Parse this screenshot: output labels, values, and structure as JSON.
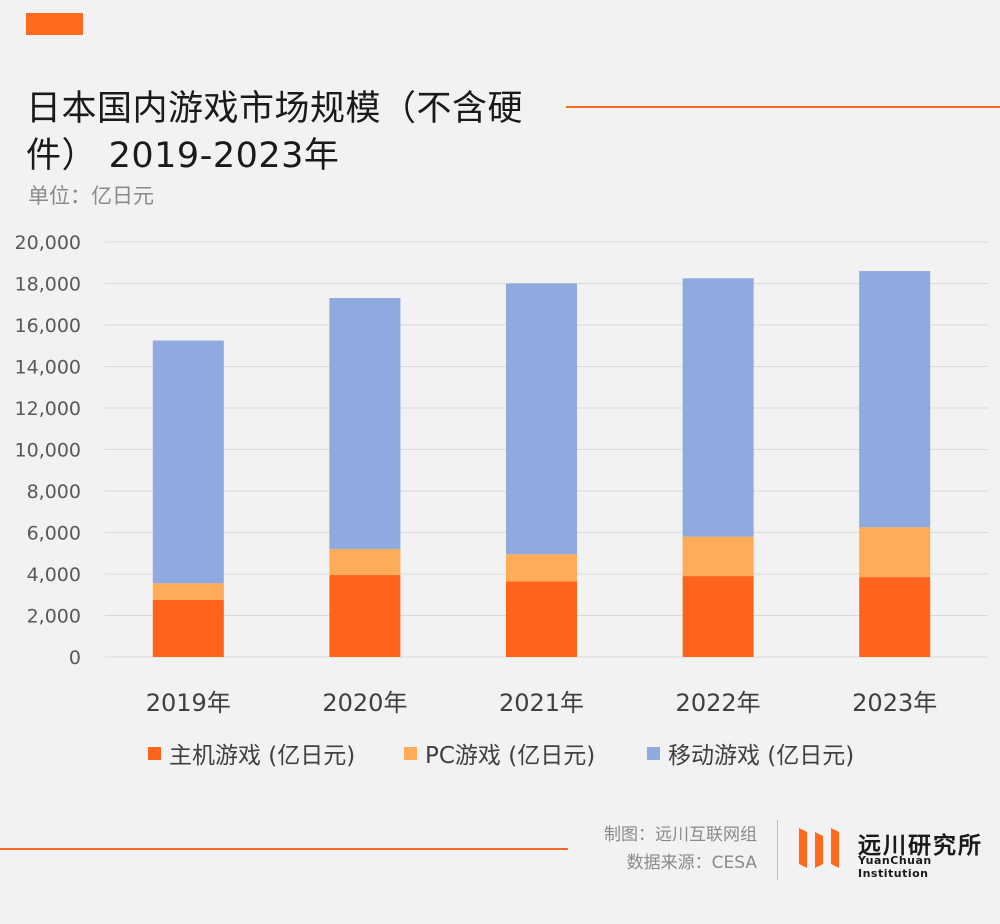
{
  "header": {
    "title": "日本国内游戏市场规模（不含硬件） 2019-2023年",
    "unit": "单位：亿日元"
  },
  "chart_data": {
    "type": "bar",
    "stacked": true,
    "title": "日本国内游戏市场规模（不含硬件） 2019-2023年",
    "ylabel": "亿日元",
    "ylim": [
      0,
      20000
    ],
    "yticks": [
      0,
      2000,
      4000,
      6000,
      8000,
      10000,
      12000,
      14000,
      16000,
      18000,
      20000
    ],
    "ytick_labels": [
      "0",
      "2,000",
      "4,000",
      "6,000",
      "8,000",
      "10,000",
      "12,000",
      "14,000",
      "16,000",
      "18,000",
      "20,000"
    ],
    "categories": [
      "2019年",
      "2020年",
      "2021年",
      "2022年",
      "2023年"
    ],
    "series": [
      {
        "name": "主机游戏 (亿日元)",
        "color": "#ff631c",
        "values": [
          2750,
          3950,
          3650,
          3900,
          3850
        ]
      },
      {
        "name": "PC游戏 (亿日元)",
        "color": "#ffab57",
        "values": [
          800,
          1250,
          1300,
          1900,
          2400
        ]
      },
      {
        "name": "移动游戏 (亿日元)",
        "color": "#8eaadf",
        "values": [
          11700,
          12100,
          13050,
          12450,
          12350
        ]
      }
    ],
    "legend_position": "bottom",
    "grid": true
  },
  "footer": {
    "maker": "制图：远川互联网组",
    "source": "数据来源：CESA",
    "brand_cn": "远川研究所",
    "brand_en": "YuanChuan Institution"
  },
  "colors": {
    "accent": "#ff6a1f",
    "grid": "#d9d9d9"
  }
}
